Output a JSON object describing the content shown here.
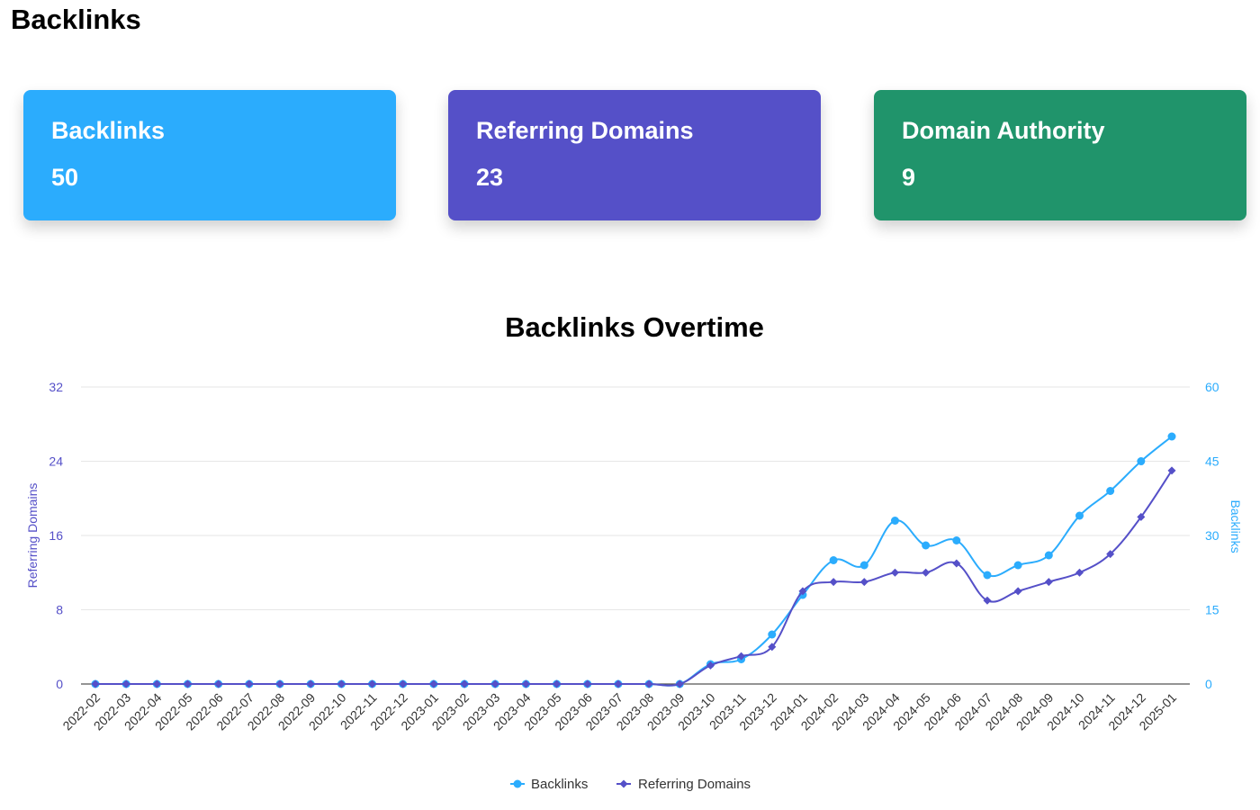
{
  "page": {
    "title": "Backlinks"
  },
  "cards": [
    {
      "label": "Backlinks",
      "value": "50",
      "color": "#2bacfd"
    },
    {
      "label": "Referring Domains",
      "value": "23",
      "color": "#5550c8"
    },
    {
      "label": "Domain Authority",
      "value": "9",
      "color": "#20946b"
    }
  ],
  "chart_data": {
    "type": "line",
    "title": "Backlinks Overtime",
    "x": [
      "2022-02",
      "2022-03",
      "2022-04",
      "2022-05",
      "2022-06",
      "2022-07",
      "2022-08",
      "2022-09",
      "2022-10",
      "2022-11",
      "2022-12",
      "2023-01",
      "2023-02",
      "2023-03",
      "2023-04",
      "2023-05",
      "2023-06",
      "2023-07",
      "2023-08",
      "2023-09",
      "2023-10",
      "2023-11",
      "2023-12",
      "2024-01",
      "2024-02",
      "2024-03",
      "2024-04",
      "2024-05",
      "2024-06",
      "2024-07",
      "2024-08",
      "2024-09",
      "2024-10",
      "2024-11",
      "2024-12",
      "2025-01"
    ],
    "y_left": {
      "label": "Referring Domains",
      "range": [
        0,
        32
      ],
      "ticks": [
        "0",
        "8",
        "16",
        "24",
        "32"
      ],
      "color": "#5550c8"
    },
    "y_right": {
      "label": "Backlinks",
      "range": [
        0,
        60
      ],
      "ticks": [
        "0",
        "15",
        "30",
        "45",
        "60"
      ],
      "color": "#2bacfd"
    },
    "grid": true,
    "legend_position": "bottom-center",
    "series": [
      {
        "name": "Backlinks",
        "axis": "right",
        "color": "#2bacfd",
        "marker": "circle",
        "values": [
          0,
          0,
          0,
          0,
          0,
          0,
          0,
          0,
          0,
          0,
          0,
          0,
          0,
          0,
          0,
          0,
          0,
          0,
          0,
          0,
          4,
          5,
          10,
          18,
          25,
          24,
          33,
          28,
          29,
          22,
          24,
          26,
          34,
          39,
          45,
          50
        ]
      },
      {
        "name": "Referring Domains",
        "axis": "left",
        "color": "#5550c8",
        "marker": "diamond",
        "values": [
          0,
          0,
          0,
          0,
          0,
          0,
          0,
          0,
          0,
          0,
          0,
          0,
          0,
          0,
          0,
          0,
          0,
          0,
          0,
          0,
          2,
          3,
          4,
          10,
          11,
          11,
          12,
          12,
          13,
          9,
          10,
          11,
          12,
          14,
          18,
          23
        ]
      }
    ]
  }
}
